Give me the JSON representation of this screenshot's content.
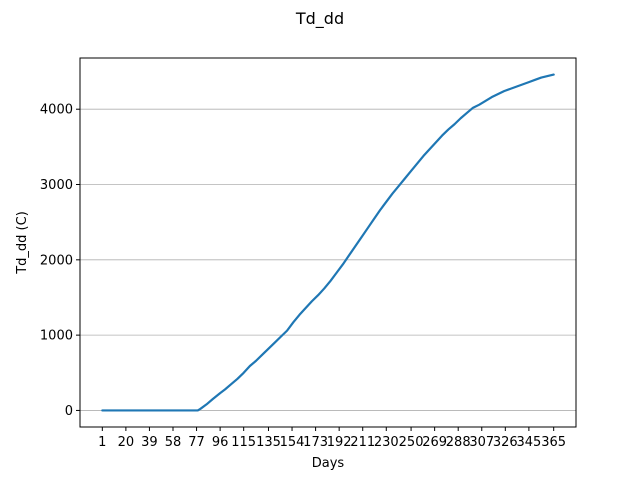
{
  "chart_data": {
    "type": "line",
    "title": "Td_dd",
    "xlabel": "Days",
    "ylabel": "Td_dd (C)",
    "x_ticks": [
      1,
      20,
      39,
      58,
      77,
      96,
      115,
      135,
      154,
      173,
      192,
      211,
      230,
      250,
      269,
      288,
      307,
      326,
      345,
      365
    ],
    "y_ticks": [
      0,
      1000,
      2000,
      3000,
      4000
    ],
    "xlim": [
      -17,
      383
    ],
    "ylim": [
      -220,
      4680
    ],
    "grid": "y",
    "colors": {
      "line": "#1f77b4",
      "grid": "#b0b0b0"
    },
    "series": [
      {
        "x": [
          1,
          20,
          40,
          60,
          78,
          80,
          85,
          90,
          96,
          100,
          105,
          110,
          115,
          120,
          125,
          130,
          135,
          140,
          145,
          150,
          155,
          160,
          165,
          170,
          175,
          180,
          185,
          190,
          195,
          200,
          205,
          210,
          215,
          220,
          225,
          230,
          235,
          240,
          245,
          250,
          255,
          260,
          265,
          270,
          275,
          280,
          285,
          290,
          295,
          300,
          305,
          310,
          315,
          320,
          325,
          330,
          335,
          340,
          345,
          350,
          355,
          360,
          365
        ],
        "y": [
          0,
          0,
          0,
          0,
          0,
          20,
          80,
          150,
          230,
          280,
          350,
          420,
          500,
          590,
          660,
          740,
          820,
          900,
          980,
          1060,
          1170,
          1270,
          1360,
          1450,
          1530,
          1620,
          1720,
          1830,
          1940,
          2060,
          2180,
          2300,
          2420,
          2540,
          2660,
          2770,
          2880,
          2980,
          3080,
          3180,
          3280,
          3380,
          3470,
          3560,
          3650,
          3730,
          3800,
          3880,
          3950,
          4020,
          4060,
          4110,
          4160,
          4200,
          4240,
          4270,
          4300,
          4330,
          4360,
          4390,
          4420,
          4440,
          4460
        ]
      }
    ]
  }
}
